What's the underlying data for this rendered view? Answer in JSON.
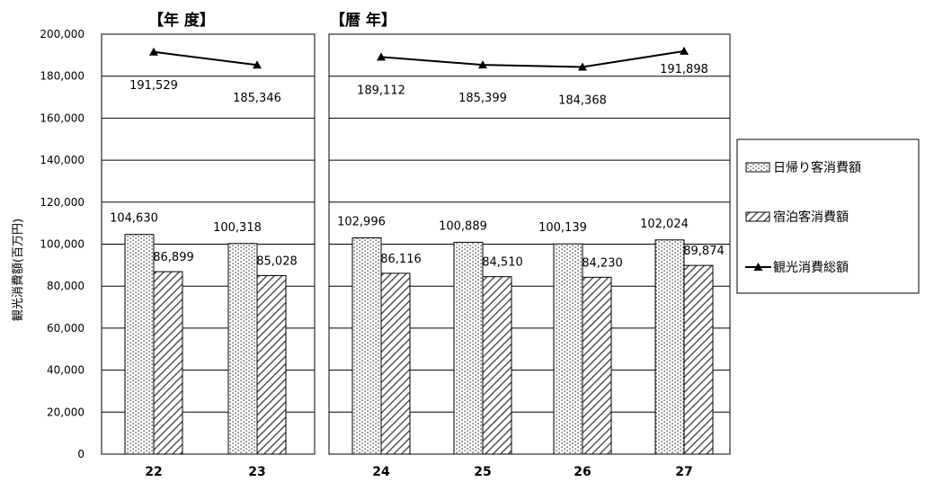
{
  "chart_data": {
    "type": "bar",
    "ylabel": "観光消費額(百万円)",
    "ylim": [
      0,
      200000
    ],
    "y_ticks": [
      "0",
      "20,000",
      "40,000",
      "60,000",
      "80,000",
      "100,000",
      "120,000",
      "140,000",
      "160,000",
      "180,000",
      "200,000"
    ],
    "legend_position": "right",
    "grid": true,
    "panels": [
      {
        "title": "【年 度】",
        "categories": [
          "22",
          "23"
        ],
        "series": [
          {
            "name": "日帰り客消費額",
            "values": [
              104630,
              100318
            ],
            "labels": [
              "104,630",
              "100,318"
            ]
          },
          {
            "name": "宿泊客消費額",
            "values": [
              86899,
              85028
            ],
            "labels": [
              "86,899",
              "85,028"
            ]
          },
          {
            "name": "観光消費総額",
            "values": [
              191529,
              185346
            ],
            "labels": [
              "191,529",
              "185,346"
            ]
          }
        ]
      },
      {
        "title": "【暦 年】",
        "categories": [
          "24",
          "25",
          "26",
          "27"
        ],
        "series": [
          {
            "name": "日帰り客消費額",
            "values": [
              102996,
              100889,
              100139,
              102024
            ],
            "labels": [
              "102,996",
              "100,889",
              "100,139",
              "102,024"
            ]
          },
          {
            "name": "宿泊客消費額",
            "values": [
              86116,
              84510,
              84230,
              89874
            ],
            "labels": [
              "86,116",
              "84,510",
              "84,230",
              "89,874"
            ]
          },
          {
            "name": "観光消費総額",
            "values": [
              189112,
              185399,
              184368,
              191898
            ],
            "labels": [
              "189,112",
              "185,399",
              "184,368",
              "191,898"
            ]
          }
        ]
      }
    ],
    "legend": [
      "日帰り客消費額",
      "宿泊客消費額",
      "観光消費総額"
    ]
  }
}
